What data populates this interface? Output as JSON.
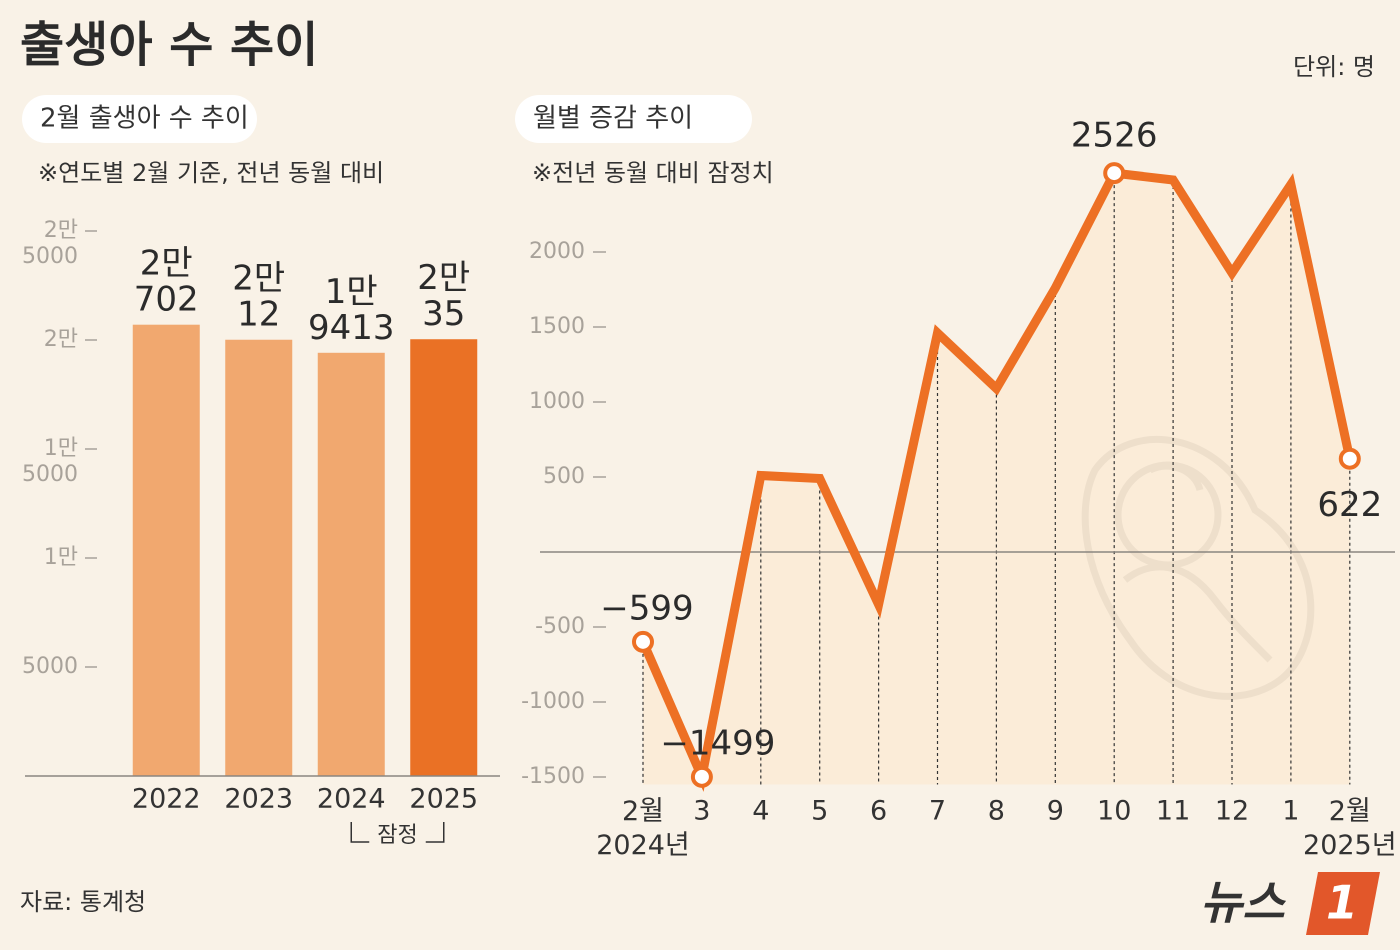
{
  "title": "출생아 수 추이",
  "unit": "단위: 명",
  "source": "자료: 통계청",
  "logo_text": "뉴스",
  "logo_mark": "1",
  "chart_data": [
    {
      "type": "bar",
      "subtitle": "2월 출생아 수 추이",
      "note": "※연도별 2월 기준, 전년 동월 대비",
      "categories": [
        "2022",
        "2023",
        "2024",
        "2025"
      ],
      "values": [
        20702,
        20012,
        19413,
        20035
      ],
      "value_labels": [
        "2만\n702",
        "2만\n12",
        "1만\n9413",
        "2만\n35"
      ],
      "colors": [
        "#f1a86f",
        "#f1a86f",
        "#f1a86f",
        "#ea7125"
      ],
      "ylim": [
        0,
        25000
      ],
      "yticks": [
        {
          "value": 5000,
          "label": "5000"
        },
        {
          "value": 10000,
          "label": "1만"
        },
        {
          "value": 15000,
          "label": "1만\n5000"
        },
        {
          "value": 20000,
          "label": "2만"
        },
        {
          "value": 25000,
          "label": "2만\n5000"
        }
      ],
      "annotation": "잠정"
    },
    {
      "type": "line",
      "subtitle": "월별 증감 추이",
      "note": "※전년 동월 대비 잠정치",
      "categories": [
        "2월\n2024년",
        "3",
        "4",
        "5",
        "6",
        "7",
        "8",
        "9",
        "10",
        "11",
        "12",
        "1",
        "2월\n2025년"
      ],
      "values": [
        -599,
        -1499,
        510,
        490,
        -350,
        1460,
        1090,
        1760,
        2526,
        2480,
        1860,
        2450,
        622
      ],
      "value_labels": [
        "−599",
        "−1499",
        null,
        null,
        null,
        null,
        null,
        null,
        "2526",
        null,
        null,
        null,
        "622"
      ],
      "color": "#ed7024",
      "ylim": [
        -1550,
        2350
      ],
      "yticks": [
        -1500,
        -1000,
        -500,
        500,
        1000,
        1500,
        2000
      ]
    }
  ]
}
